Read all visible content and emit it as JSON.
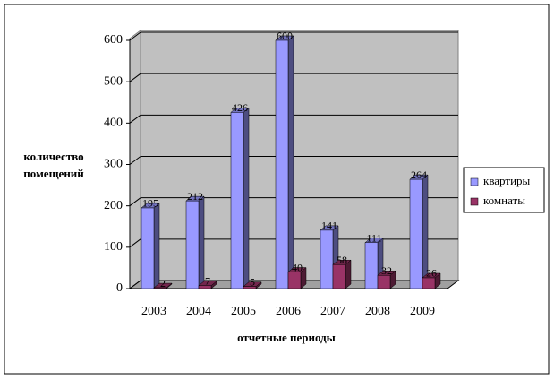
{
  "chart_data": {
    "type": "bar3d",
    "y_label": [
      "количество",
      "помещений"
    ],
    "x_label": "отчетные периоды",
    "categories": [
      "2003",
      "2004",
      "2005",
      "2006",
      "2007",
      "2008",
      "2009"
    ],
    "series": [
      {
        "name": "квартиры",
        "color": "#9999ff",
        "values": [
          195,
          212,
          426,
          600,
          141,
          111,
          264
        ]
      },
      {
        "name": "комнаты",
        "color": "#993366",
        "values": [
          2,
          7,
          5,
          40,
          58,
          32,
          26
        ]
      }
    ],
    "ylim": [
      0,
      600
    ],
    "yticks": [
      0,
      100,
      200,
      300,
      400,
      500,
      600
    ],
    "grid": true,
    "legend": "right"
  }
}
